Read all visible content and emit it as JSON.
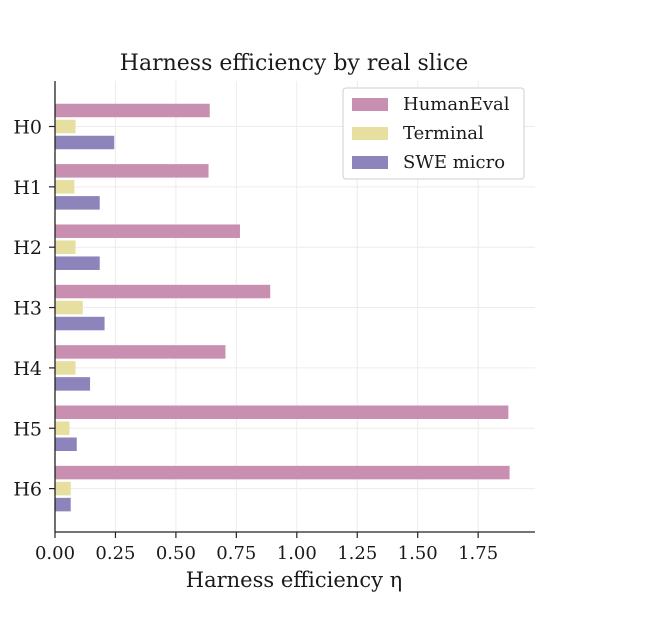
{
  "chart_data": {
    "type": "bar",
    "orientation": "horizontal",
    "title": "Harness efficiency by real slice",
    "xlabel": "Harness efficiency η",
    "ylabel": "",
    "categories": [
      "H0",
      "H1",
      "H2",
      "H3",
      "H4",
      "H5",
      "H6"
    ],
    "series": [
      {
        "name": "HumanEval",
        "color": "#c98fb0",
        "values": [
          0.64,
          0.635,
          0.765,
          0.89,
          0.705,
          1.875,
          1.88
        ]
      },
      {
        "name": "Terminal",
        "color": "#e6df9f",
        "values": [
          0.085,
          0.08,
          0.085,
          0.115,
          0.085,
          0.06,
          0.065
        ]
      },
      {
        "name": "SWE micro",
        "color": "#8d84bc",
        "values": [
          0.245,
          0.185,
          0.185,
          0.205,
          0.145,
          0.09,
          0.065
        ]
      }
    ],
    "xlim": [
      0,
      1.98
    ],
    "xticks": [
      "0.00",
      "0.25",
      "0.50",
      "0.75",
      "1.00",
      "1.25",
      "1.50",
      "1.75"
    ],
    "grid": true,
    "legend_position": "top-right"
  }
}
